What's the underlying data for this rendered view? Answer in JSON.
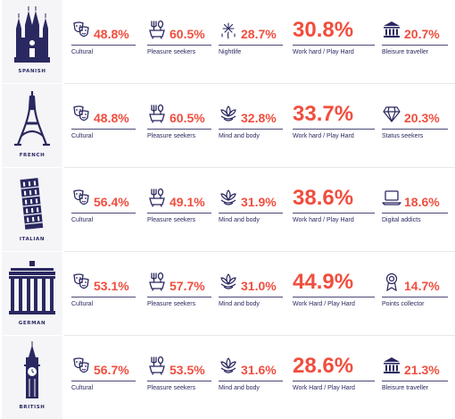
{
  "colors": {
    "navy": "#2a2860",
    "accent": "#f04e3e",
    "panel": "#f5f5f8"
  },
  "rows": [
    {
      "nationality": "SPANISH",
      "icon": "cathedral-icon",
      "segments": [
        {
          "icon": "theater-masks-icon",
          "pct": "48.8%",
          "label": "Cultural"
        },
        {
          "icon": "fork-spoon-icon",
          "pct": "60.5%",
          "label": "Pleasure seekers"
        },
        {
          "icon": "fireworks-icon",
          "pct": "28.7%",
          "label": "Nightlife"
        },
        {
          "icon": "",
          "pct": "30.8%",
          "label": "Work hard / Play Hard"
        },
        {
          "icon": "museum-icon",
          "pct": "20.7%",
          "label": "Bleisure traveller"
        }
      ]
    },
    {
      "nationality": "FRENCH",
      "icon": "eiffel-tower-icon",
      "segments": [
        {
          "icon": "theater-masks-icon",
          "pct": "48.8%",
          "label": "Cultural"
        },
        {
          "icon": "fork-spoon-icon",
          "pct": "60.5%",
          "label": "Pleasure seekers"
        },
        {
          "icon": "lotus-icon",
          "pct": "32.8%",
          "label": "Mind and body"
        },
        {
          "icon": "",
          "pct": "33.7%",
          "label": "Work hard / Play Hard"
        },
        {
          "icon": "diamond-icon",
          "pct": "20.3%",
          "label": "Status seekers"
        }
      ]
    },
    {
      "nationality": "ITALIAN",
      "icon": "leaning-tower-icon",
      "segments": [
        {
          "icon": "theater-masks-icon",
          "pct": "56.4%",
          "label": "Cultural"
        },
        {
          "icon": "fork-spoon-icon",
          "pct": "49.1%",
          "label": "Pleasure seekers"
        },
        {
          "icon": "lotus-icon",
          "pct": "31.9%",
          "label": "Mind and body"
        },
        {
          "icon": "",
          "pct": "38.6%",
          "label": "Work hard / Play Hard"
        },
        {
          "icon": "laptop-icon",
          "pct": "18.6%",
          "label": "Digital addicts"
        }
      ]
    },
    {
      "nationality": "GERMAN",
      "icon": "brandenburg-gate-icon",
      "segments": [
        {
          "icon": "theater-masks-icon",
          "pct": "53.1%",
          "label": "Cultural"
        },
        {
          "icon": "fork-spoon-icon",
          "pct": "57.7%",
          "label": "Pleasure seekers"
        },
        {
          "icon": "lotus-icon",
          "pct": "31.0%",
          "label": "Mind and body"
        },
        {
          "icon": "",
          "pct": "44.9%",
          "label": "Work Hard / Play Hard"
        },
        {
          "icon": "medal-icon",
          "pct": "14.7%",
          "label": "Points collector"
        }
      ]
    },
    {
      "nationality": "BRITISH",
      "icon": "big-ben-icon",
      "segments": [
        {
          "icon": "theater-masks-icon",
          "pct": "56.7%",
          "label": "Cultural"
        },
        {
          "icon": "fork-spoon-icon",
          "pct": "53.5%",
          "label": "Pleasure seekers"
        },
        {
          "icon": "lotus-icon",
          "pct": "31.6%",
          "label": "Mind and body"
        },
        {
          "icon": "",
          "pct": "28.6%",
          "label": "Work Hard / Play Hard"
        },
        {
          "icon": "museum-icon",
          "pct": "21.3%",
          "label": "Bleisure traveller"
        }
      ]
    }
  ]
}
